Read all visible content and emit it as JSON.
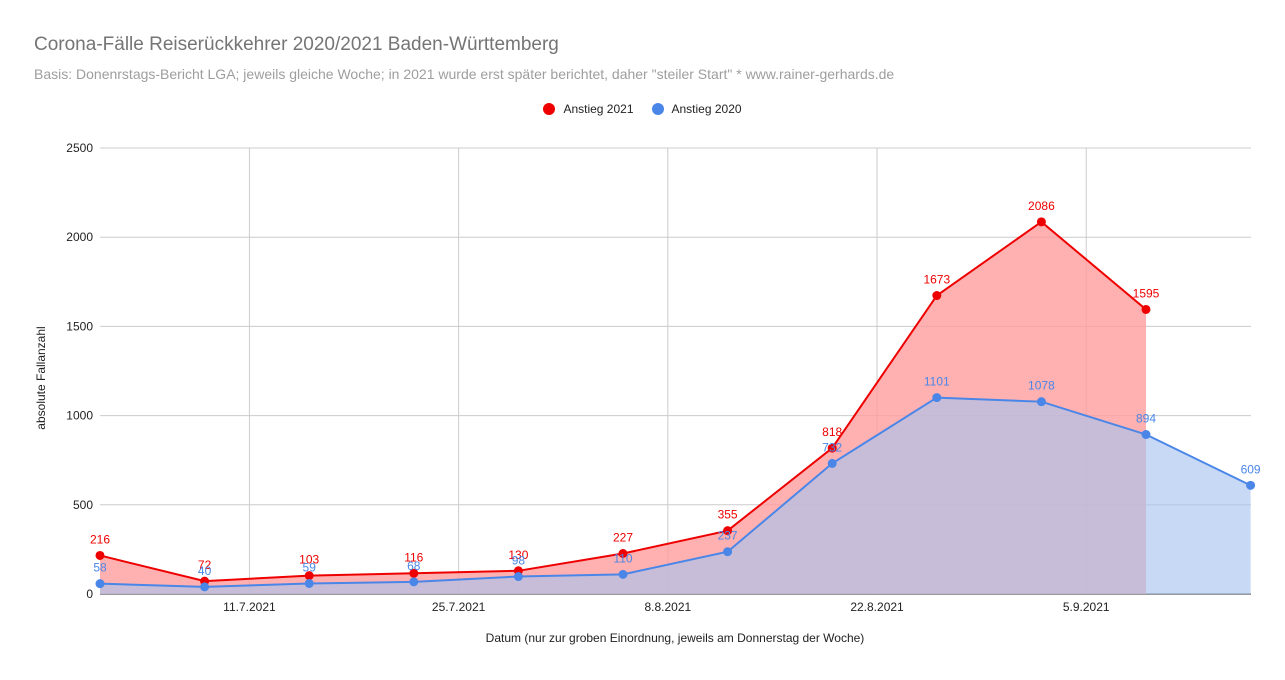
{
  "chart_data": {
    "type": "area",
    "title": "Corona-Fälle Reiserückkehrer 2020/2021 Baden-Württemberg",
    "subtitle": "Basis: Donenrstags-Bericht LGA; jeweils gleiche Woche; in 2021 wurde erst später berichtet, daher \"steiler Start\" * www.rainer-gerhards.de",
    "xlabel": "Datum (nur zur groben Einordnung, jeweils am Donnerstag der Woche)",
    "ylabel": "absolute Fallanzahl",
    "ylim": [
      0,
      2500
    ],
    "yticks": [
      0,
      500,
      1000,
      1500,
      2000,
      2500
    ],
    "xtick_labels": [
      "11.7.2021",
      "25.7.2021",
      "8.8.2021",
      "22.8.2021",
      "5.9.2021"
    ],
    "x": [
      "2021-07-01",
      "2021-07-08",
      "2021-07-15",
      "2021-07-22",
      "2021-07-29",
      "2021-08-05",
      "2021-08-12",
      "2021-08-19",
      "2021-08-26",
      "2021-09-02",
      "2021-09-09",
      "2021-09-16"
    ],
    "legend_position": "top",
    "grid": true,
    "series": [
      {
        "name": "Anstieg 2021",
        "color": "#ee0000",
        "fill": "#ff9c9c",
        "values": [
          216,
          72,
          103,
          116,
          130,
          227,
          355,
          818,
          1673,
          2086,
          1595,
          null
        ]
      },
      {
        "name": "Anstieg 2020",
        "color": "#4a86e8",
        "fill": "#a9c4f0",
        "values": [
          58,
          40,
          59,
          68,
          98,
          110,
          237,
          732,
          1101,
          1078,
          894,
          609
        ]
      }
    ]
  }
}
